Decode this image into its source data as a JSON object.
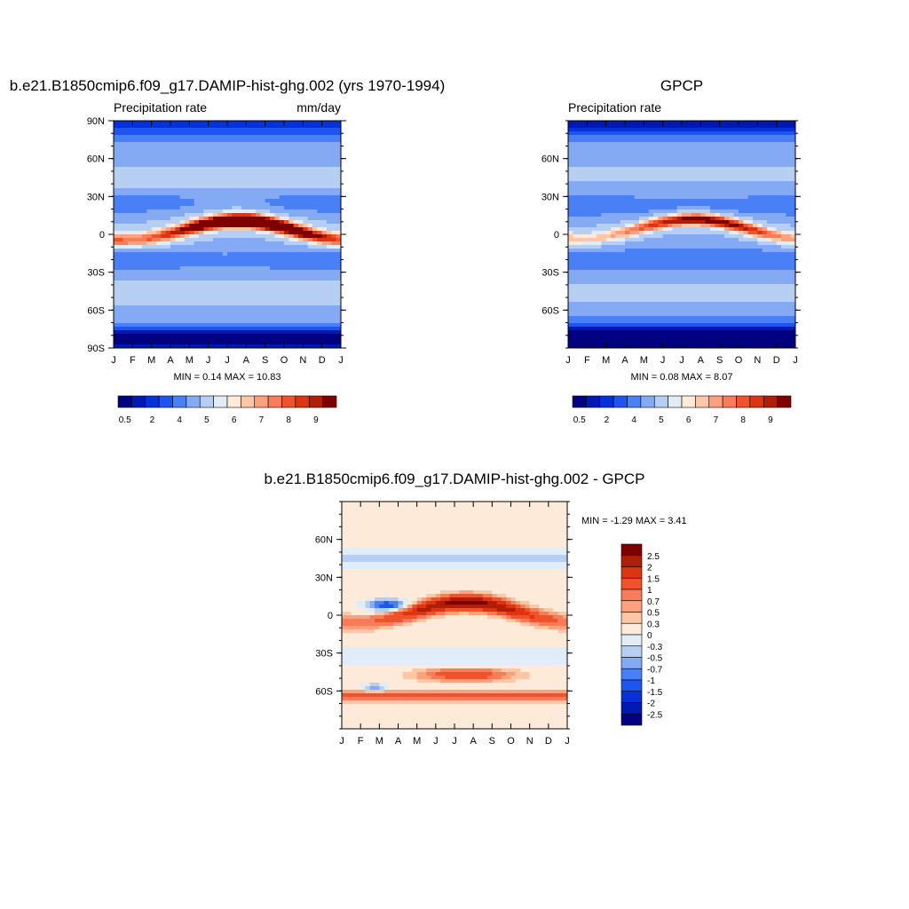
{
  "chart_data": [
    {
      "type": "heatmap",
      "title": "b.e21.B1850cmip6.f09_g17.DAMIP-hist-ghg.002 (yrs 1970-1994)",
      "left_label": "Precipitation rate",
      "right_label": "mm/day",
      "x_tick_labels": [
        "J",
        "F",
        "M",
        "A",
        "M",
        "J",
        "J",
        "A",
        "S",
        "O",
        "N",
        "D",
        "J"
      ],
      "y_tick_labels": [
        "90N",
        "60N",
        "30N",
        "0",
        "30S",
        "60S",
        "90S"
      ],
      "ylim": [
        -90,
        90
      ],
      "stats": "MIN =   0.14 MAX =   10.83",
      "min": 0.14,
      "max": 10.83,
      "itcz_center_lat": {
        "J": -3,
        "M": -5,
        "A": 0,
        "J2": 6,
        "A2": 8,
        "O": 5,
        "D": 0
      },
      "peak_value": 10.83
    },
    {
      "type": "heatmap",
      "title": "GPCP",
      "left_label": "Precipitation rate",
      "right_label": "",
      "x_tick_labels": [
        "J",
        "F",
        "M",
        "A",
        "M",
        "J",
        "J",
        "A",
        "S",
        "O",
        "N",
        "D",
        "J"
      ],
      "y_tick_labels": [
        "60N",
        "30N",
        "0",
        "30S",
        "60S"
      ],
      "ylim": [
        -90,
        90
      ],
      "stats": "MIN =   0.08 MAX =   8.07",
      "min": 0.08,
      "max": 8.07,
      "peak_value": 8.07
    },
    {
      "type": "heatmap",
      "title": "b.e21.B1850cmip6.f09_g17.DAMIP-hist-ghg.002 - GPCP",
      "x_tick_labels": [
        "J",
        "F",
        "M",
        "A",
        "M",
        "J",
        "J",
        "A",
        "S",
        "O",
        "N",
        "D",
        "J"
      ],
      "y_tick_labels": [
        "60N",
        "30N",
        "0",
        "30S",
        "60S"
      ],
      "ylim": [
        -90,
        90
      ],
      "stats": "MIN =  -1.29 MAX =   3.41",
      "min": -1.29,
      "max": 3.41
    }
  ],
  "colorbar_abs": {
    "labels": [
      "0.5",
      "2",
      "4",
      "5",
      "6",
      "7",
      "8",
      "9"
    ],
    "colors": [
      "#000080",
      "#0019b3",
      "#0532d8",
      "#1e55f0",
      "#4a80f5",
      "#84aaf3",
      "#b6cef2",
      "#e0ecf8",
      "#feead8",
      "#fdc7a5",
      "#fba17e",
      "#f77c57",
      "#f0532c",
      "#dd3412",
      "#b01e07",
      "#7f0000"
    ]
  },
  "colorbar_diff": {
    "labels": [
      "2.5",
      "2",
      "1.5",
      "1",
      "0.7",
      "0.5",
      "0.3",
      "0",
      "-0.3",
      "-0.5",
      "-0.7",
      "-1",
      "-1.5",
      "-2",
      "-2.5"
    ],
    "colors": [
      "#7f0000",
      "#b01e07",
      "#dd3412",
      "#f0532c",
      "#f77c57",
      "#fba17e",
      "#fdc7a5",
      "#feead8",
      "#e0ecf8",
      "#b6cef2",
      "#84aaf3",
      "#4a80f5",
      "#1e55f0",
      "#0532d8",
      "#0019b3",
      "#000080"
    ]
  }
}
